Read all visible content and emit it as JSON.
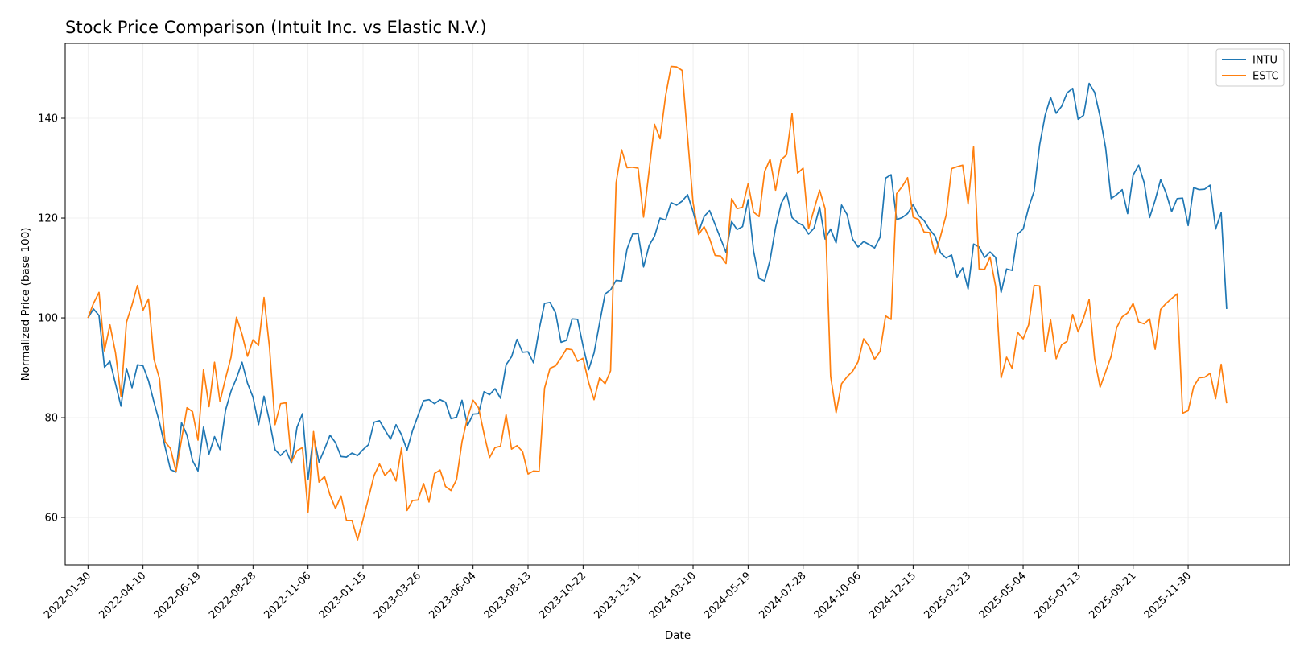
{
  "chart_data": {
    "type": "line",
    "title": "Stock Price Comparison (Intuit Inc. vs Elastic N.V.)",
    "xlabel": "Date",
    "ylabel": "Normalized Price (base 100)",
    "ylim": [
      50.5,
      155
    ],
    "xlim": [
      "2022-01-01",
      "2026-04-08"
    ],
    "x_tick_labels": [
      "2022-01-30",
      "2022-04-10",
      "2022-06-19",
      "2022-08-28",
      "2022-11-06",
      "2023-01-15",
      "2023-03-26",
      "2023-06-04",
      "2023-08-13",
      "2023-10-22",
      "2023-12-31",
      "2024-03-10",
      "2024-05-19",
      "2024-07-28",
      "2024-10-06",
      "2024-12-15",
      "2025-02-23",
      "2025-05-04",
      "2025-07-13",
      "2025-09-21",
      "2025-11-30"
    ],
    "y_ticks": [
      60,
      80,
      100,
      120,
      140
    ],
    "grid": true,
    "legend_position": "top-right",
    "x_start": "2022-01-30",
    "x_step_days": 7,
    "series": [
      {
        "name": "INTU",
        "color": "#1f77b4",
        "values": [
          100,
          101.8,
          100.5,
          90.1,
          91.3,
          86.8,
          82.3,
          89.9,
          86,
          90.6,
          90.4,
          87.4,
          83.1,
          79,
          74.2,
          69.6,
          69.1,
          79,
          76.5,
          71.4,
          69.3,
          78.1,
          72.7,
          76.2,
          73.6,
          81.5,
          85.3,
          87.9,
          91.1,
          86.9,
          84.1,
          78.6,
          84.3,
          79.3,
          73.6,
          72.4,
          73.5,
          70.9,
          78.1,
          80.8,
          67.6,
          76.5,
          71.1,
          73.7,
          76.5,
          75,
          72.2,
          72.1,
          72.9,
          72.4,
          73.6,
          74.6,
          79.1,
          79.4,
          77.5,
          75.7,
          78.6,
          76.6,
          73.5,
          77.4,
          80.4,
          83.4,
          83.6,
          82.8,
          83.6,
          83.1,
          79.8,
          80.1,
          83.5,
          78.4,
          80.7,
          80.8,
          85.2,
          84.6,
          85.8,
          83.9,
          90.6,
          92.2,
          95.7,
          93.1,
          93.2,
          91,
          97.6,
          102.9,
          103.1,
          101,
          95.1,
          95.5,
          99.8,
          99.7,
          94.4,
          89.6,
          93,
          99,
          104.8,
          105.6,
          107.5,
          107.4,
          113.8,
          116.8,
          116.9,
          110.2,
          114.5,
          116.4,
          120,
          119.6,
          123.1,
          122.6,
          123.4,
          124.7,
          121.3,
          117.2,
          120.3,
          121.5,
          118.7,
          115.9,
          113.1,
          119.3,
          117.7,
          118.3,
          123.7,
          113.4,
          107.9,
          107.4,
          111.6,
          118.1,
          122.9,
          125,
          120.1,
          119.1,
          118.5,
          116.8,
          118,
          122.2,
          115.8,
          117.8,
          115,
          122.6,
          120.7,
          115.8,
          114.2,
          115.3,
          114.7,
          114,
          116.2,
          128,
          128.7,
          119.7,
          120.1,
          120.9,
          122.7,
          120.5,
          119.5,
          117.7,
          116.4,
          113,
          112,
          112.6,
          108.2,
          110,
          105.8,
          114.8,
          114.2,
          112.1,
          113.2,
          112.1,
          105.1,
          109.8,
          109.5,
          116.8,
          117.8,
          122.1,
          125.4,
          134.7,
          140.6,
          144.2,
          141,
          142.4,
          145.1,
          146,
          139.8,
          140.6,
          147,
          145.2,
          140.3,
          134,
          123.9,
          124.7,
          125.7,
          120.9,
          128.6,
          130.6,
          127.1,
          120.1,
          123.6,
          127.7,
          125,
          121.3,
          123.9,
          124,
          118.5,
          126.1,
          125.7,
          125.8,
          126.6,
          117.8,
          121.1,
          101.8
        ]
      },
      {
        "name": "ESTC",
        "color": "#ff7f0e",
        "values": [
          100,
          102.9,
          105.1,
          93.4,
          98.6,
          93,
          84.3,
          99.1,
          102.6,
          106.5,
          101.5,
          103.8,
          91.7,
          87.8,
          75.2,
          73.8,
          69.2,
          75.6,
          82,
          81.2,
          75.5,
          89.6,
          82.2,
          91.1,
          83.2,
          87.9,
          92.1,
          100.1,
          96.7,
          92.3,
          95.6,
          94.5,
          104.1,
          94.1,
          78.6,
          82.8,
          83,
          71.2,
          73.4,
          74,
          61.1,
          77.2,
          67.1,
          68.2,
          64.5,
          61.8,
          64.3,
          59.4,
          59.4,
          55.5,
          59.6,
          63.9,
          68.4,
          70.7,
          68.4,
          69.7,
          67.3,
          73.9,
          61.4,
          63.4,
          63.5,
          66.8,
          63.1,
          68.8,
          69.5,
          66.2,
          65.4,
          67.6,
          75.2,
          80,
          83.5,
          82,
          76.8,
          72,
          74,
          74.3,
          80.6,
          73.7,
          74.4,
          73.2,
          68.7,
          69.3,
          69.2,
          85.9,
          89.9,
          90.4,
          92,
          93.8,
          93.6,
          91.3,
          91.9,
          87.1,
          83.6,
          88,
          86.8,
          89.4,
          127.1,
          133.7,
          130.1,
          130.2,
          130,
          120.2,
          129.5,
          138.8,
          135.9,
          144.5,
          150.4,
          150.3,
          149.6,
          136.2,
          123.1,
          116.7,
          118.3,
          115.9,
          112.5,
          112.4,
          110.9,
          123.9,
          121.9,
          122.2,
          126.9,
          121.2,
          120.3,
          129.3,
          131.8,
          125.6,
          131.7,
          132.7,
          141,
          129,
          130,
          117.9,
          121.8,
          125.6,
          121.9,
          88.3,
          81,
          86.8,
          88.2,
          89.3,
          91.2,
          95.8,
          94.3,
          91.7,
          93.3,
          100.4,
          99.7,
          124.9,
          126.3,
          128.1,
          120.2,
          119.7,
          117.2,
          117.1,
          112.7,
          116.4,
          120.6,
          129.9,
          130.3,
          130.6,
          122.8,
          134.3,
          109.8,
          109.7,
          112.2,
          106.3,
          88,
          92.1,
          89.9,
          97.1,
          95.8,
          98.6,
          106.5,
          106.4,
          93.3,
          99.6,
          91.8,
          94.6,
          95.3,
          100.7,
          97.2,
          100,
          103.7,
          91.8,
          86.1,
          89.2,
          92.3,
          98,
          100.2,
          101,
          102.9,
          99.2,
          98.8,
          99.8,
          93.7,
          101.7,
          102.9,
          103.9,
          104.8,
          80.9,
          81.4,
          86.2,
          88,
          88.1,
          88.9,
          83.8,
          90.7,
          82.9
        ]
      }
    ]
  }
}
